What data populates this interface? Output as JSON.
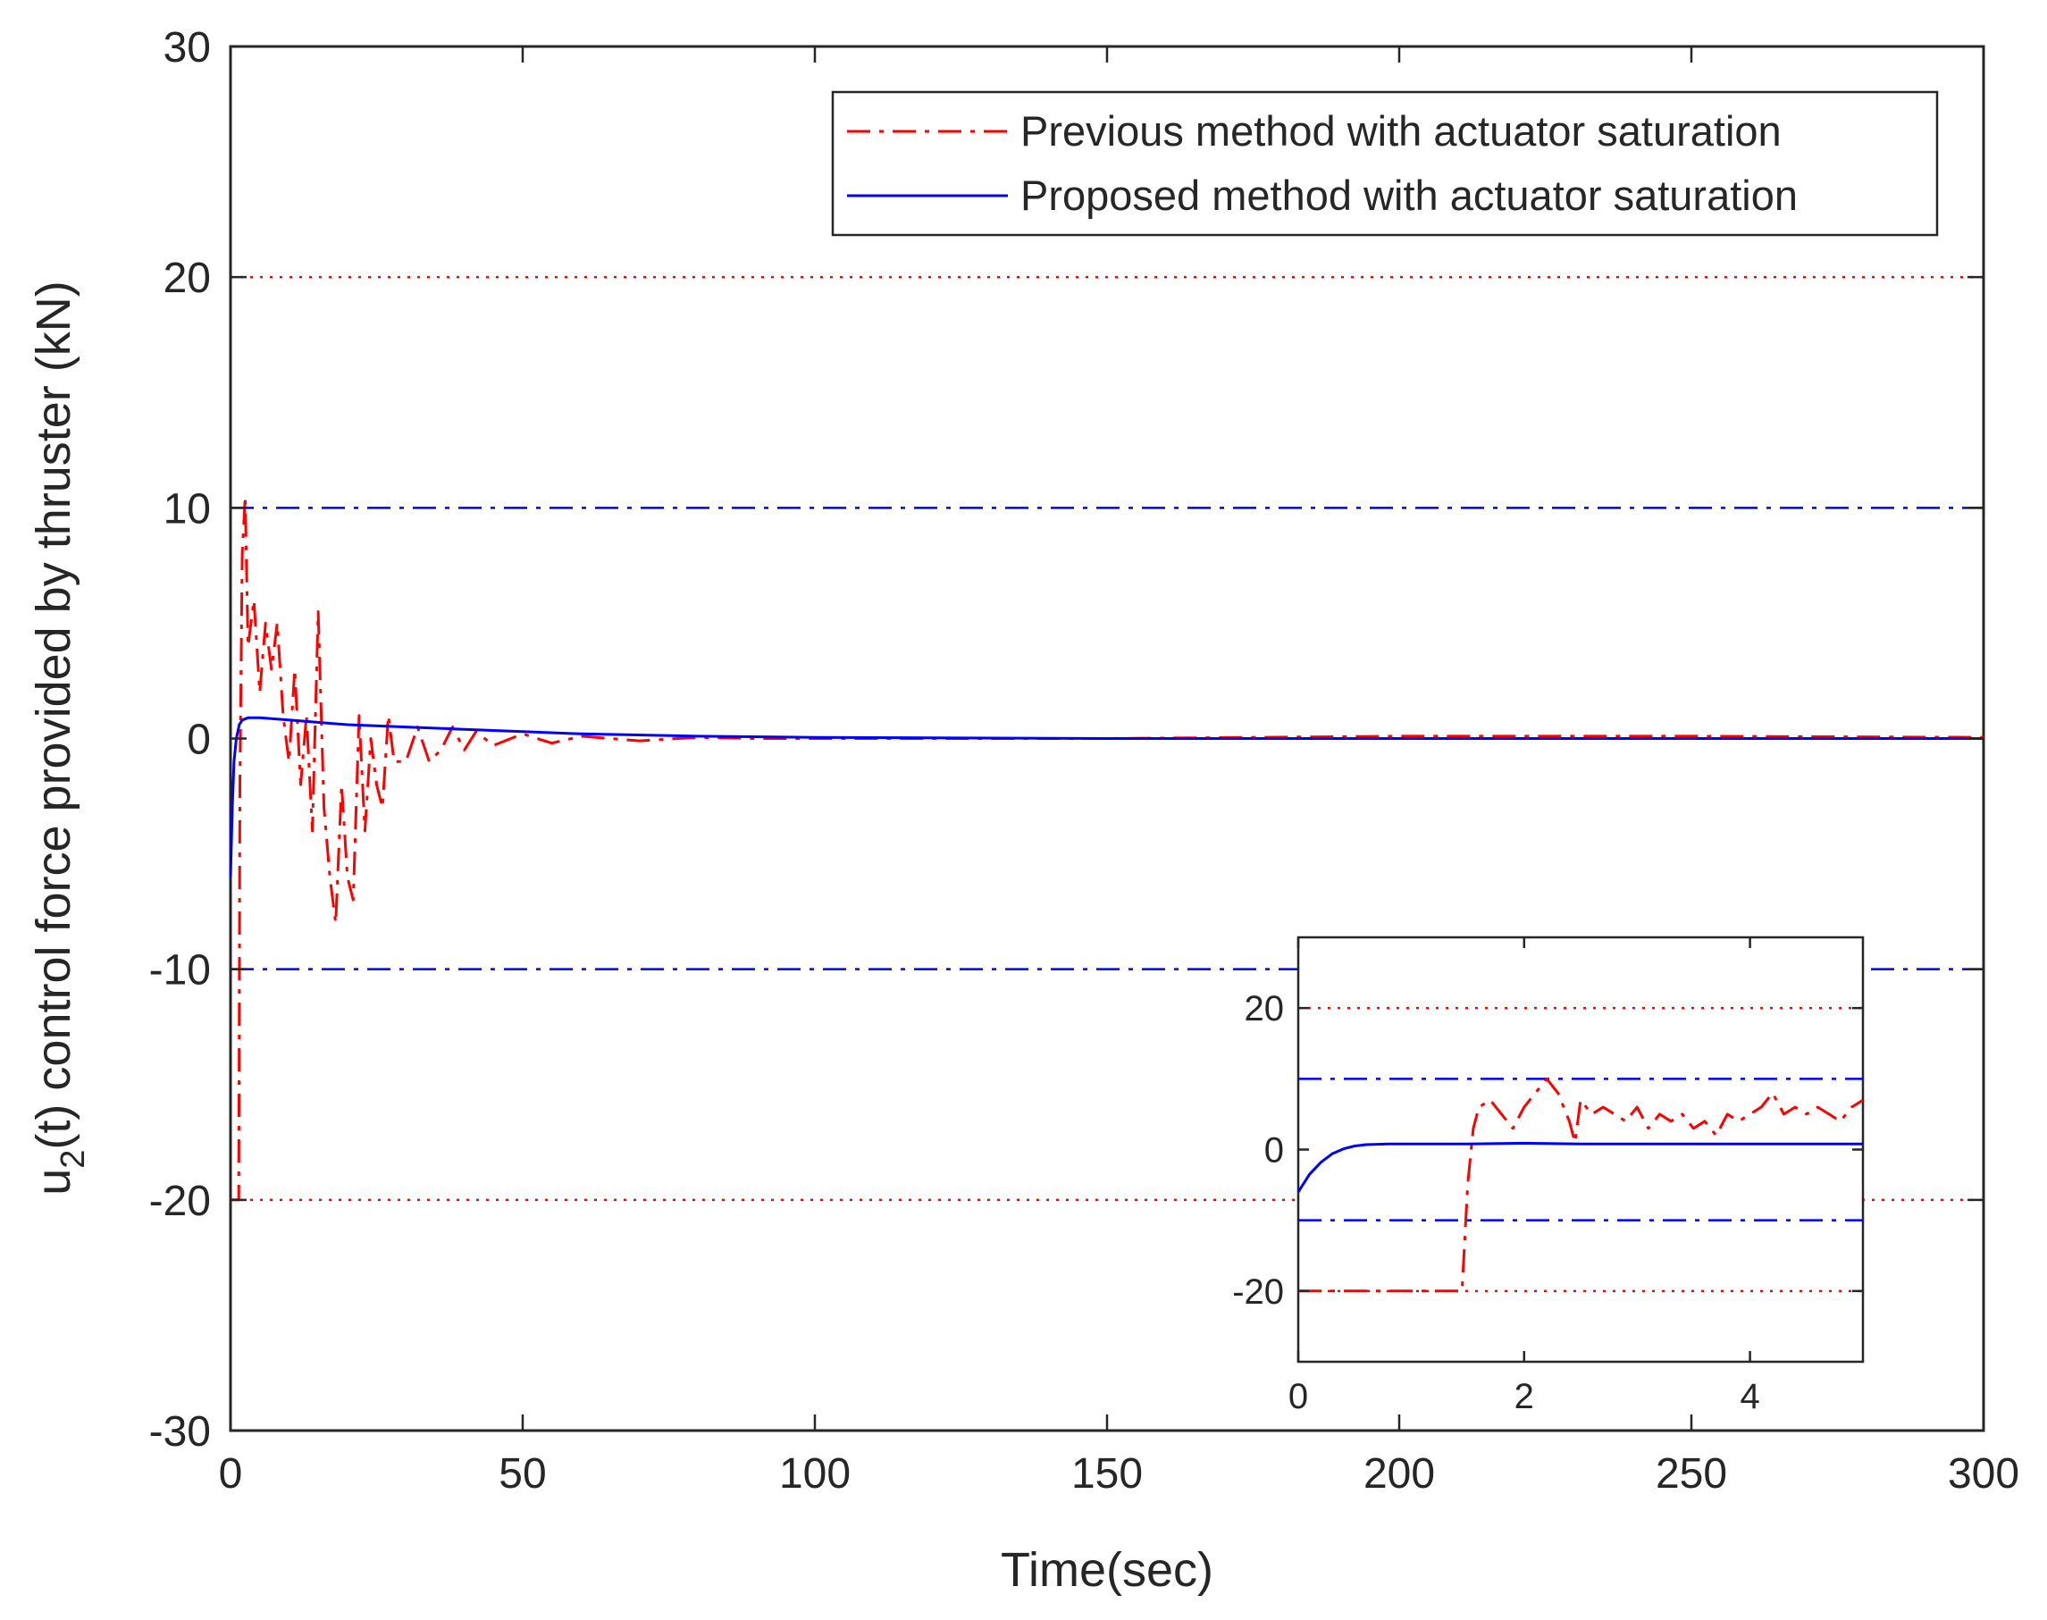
{
  "chart_data": [
    {
      "type": "line",
      "name": "main",
      "xlabel": "Time(sec)",
      "ylabel_main": "u",
      "ylabel_sub": "2",
      "ylabel_rest": "(t) control force provided by thruster  (kN)",
      "xlim": [
        0,
        300
      ],
      "ylim": [
        -30,
        30
      ],
      "xticks": [
        0,
        50,
        100,
        150,
        200,
        250,
        300
      ],
      "yticks": [
        -30,
        -20,
        -10,
        0,
        10,
        20,
        30
      ],
      "reference_lines": [
        {
          "y": 20,
          "color": "#ff0000",
          "style": "dotted"
        },
        {
          "y": -20,
          "color": "#ff0000",
          "style": "dotted"
        },
        {
          "y": 10,
          "color": "#0000ff",
          "style": "dash-dot"
        },
        {
          "y": -10,
          "color": "#0000ff",
          "style": "dash-dot"
        }
      ],
      "legend_position": "top-right",
      "series": [
        {
          "name": "Previous method with actuator saturation",
          "color": "#ff0000",
          "style": "dash-dot",
          "x": [
            0,
            1.4,
            1.6,
            2,
            2.5,
            3,
            4,
            5,
            6,
            7,
            8,
            9,
            10,
            11,
            12,
            13,
            14,
            15,
            16,
            17,
            18,
            19,
            20,
            21,
            22,
            23,
            24,
            25,
            26,
            27,
            28,
            30,
            32,
            34,
            36,
            38,
            40,
            42,
            45,
            50,
            55,
            60,
            70,
            80,
            90,
            100,
            110,
            120,
            150,
            200,
            250,
            300
          ],
          "y": [
            -20,
            -20,
            -2,
            8,
            10.5,
            4,
            6,
            2,
            5,
            3,
            5,
            1,
            -1,
            3,
            -2,
            1,
            -4,
            5.5,
            -3,
            -6,
            -8,
            -2,
            -6,
            -7,
            1,
            -4,
            0,
            -2,
            -3,
            1,
            -1,
            -1,
            0.5,
            -1,
            -0.5,
            0.5,
            -0.5,
            0.3,
            -0.3,
            0.2,
            -0.2,
            0.1,
            -0.1,
            0.05,
            0,
            0,
            0,
            0,
            0,
            0.1,
            0.1,
            0.05
          ]
        },
        {
          "name": "Proposed method with actuator saturation",
          "color": "#0000ff",
          "style": "solid",
          "x": [
            0,
            0.3,
            0.6,
            1,
            1.5,
            2,
            3,
            5,
            10,
            20,
            30,
            40,
            50,
            60,
            80,
            100,
            150,
            200,
            250,
            300
          ],
          "y": [
            -6,
            -3,
            -1,
            0,
            0.6,
            0.8,
            0.9,
            0.9,
            0.8,
            0.6,
            0.5,
            0.4,
            0.3,
            0.2,
            0.1,
            0.05,
            0,
            0,
            0,
            0
          ]
        }
      ]
    },
    {
      "type": "line",
      "name": "inset",
      "xlim": [
        0,
        5
      ],
      "ylim": [
        -30,
        30
      ],
      "xticks": [
        0,
        2,
        4
      ],
      "yticks": [
        -20,
        0,
        20
      ],
      "reference_lines": [
        {
          "y": 20,
          "color": "#ff0000",
          "style": "dotted"
        },
        {
          "y": -20,
          "color": "#ff0000",
          "style": "dotted"
        },
        {
          "y": 10,
          "color": "#0000ff",
          "style": "dash-dot"
        },
        {
          "y": -10,
          "color": "#0000ff",
          "style": "dash-dot"
        }
      ],
      "series": [
        {
          "name": "Previous method with actuator saturation",
          "color": "#ff0000",
          "style": "dash-dot",
          "x": [
            0,
            1.45,
            1.5,
            1.55,
            1.6,
            1.7,
            1.8,
            1.9,
            2.0,
            2.1,
            2.2,
            2.25,
            2.3,
            2.4,
            2.45,
            2.5,
            2.6,
            2.7,
            2.8,
            2.9,
            3.0,
            3.1,
            3.2,
            3.3,
            3.4,
            3.5,
            3.6,
            3.7,
            3.8,
            3.9,
            4.0,
            4.1,
            4.2,
            4.3,
            4.4,
            4.5,
            4.6,
            4.7,
            4.8,
            4.9,
            5.0
          ],
          "y": [
            -20,
            -20,
            -5,
            3,
            6,
            7,
            5,
            3,
            6,
            8,
            10,
            9,
            8,
            4,
            1,
            7,
            5,
            6,
            5,
            4,
            6,
            3,
            5,
            4,
            5,
            3,
            4,
            2,
            5,
            4,
            5,
            6,
            8,
            5,
            6,
            5,
            6,
            5,
            4,
            6,
            7
          ]
        },
        {
          "name": "Proposed method with actuator saturation",
          "color": "#0000ff",
          "style": "solid",
          "x": [
            0,
            0.1,
            0.2,
            0.3,
            0.4,
            0.5,
            0.6,
            0.8,
            1.0,
            1.5,
            2.0,
            2.5,
            3.0,
            4.0,
            5.0
          ],
          "y": [
            -6,
            -3.5,
            -1.8,
            -0.6,
            0.1,
            0.5,
            0.7,
            0.8,
            0.8,
            0.8,
            0.9,
            0.8,
            0.8,
            0.8,
            0.8
          ]
        }
      ]
    }
  ]
}
